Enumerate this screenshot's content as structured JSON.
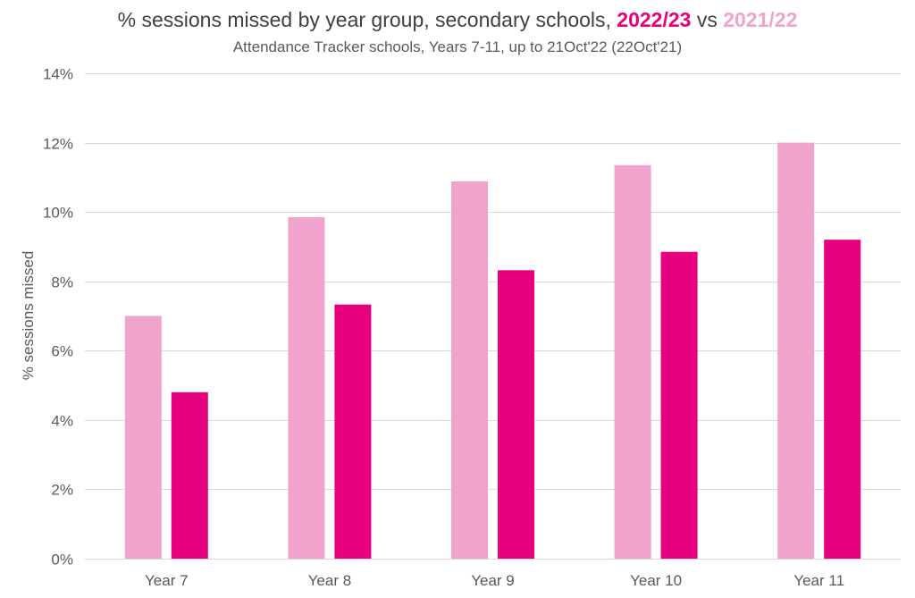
{
  "chart_data": {
    "type": "bar",
    "title_parts": [
      {
        "text": "% sessions missed by year group, secondary schools, ",
        "role": "plain"
      },
      {
        "text": "2022/23",
        "role": "series_current"
      },
      {
        "text": " vs ",
        "role": "plain"
      },
      {
        "text": "2021/22",
        "role": "series_previous"
      }
    ],
    "subtitle": "Attendance Tracker schools, Years 7-11, up to 21Oct'22 (22Oct'21)",
    "ylabel": "% sessions missed",
    "xlabel": "",
    "categories": [
      "Year 7",
      "Year 8",
      "Year 9",
      "Year 10",
      "Year 11"
    ],
    "series": [
      {
        "name": "2021/22",
        "color": "#f0a3cc",
        "values": [
          7.0,
          9.85,
          10.88,
          11.35,
          12.0
        ]
      },
      {
        "name": "2022/23",
        "color": "#e6007e",
        "values": [
          4.8,
          7.33,
          8.32,
          8.85,
          9.2
        ]
      }
    ],
    "ylim": [
      0,
      14
    ],
    "ytick_step": 2,
    "ytick_format": "percent",
    "grid": true,
    "legend": "none (series identified by coloured title text)"
  },
  "colors": {
    "title": "#404040",
    "subtitle": "#595959",
    "series_current": "#e6007e",
    "series_previous": "#f0a3cc",
    "grid": "#d9d9d9"
  }
}
